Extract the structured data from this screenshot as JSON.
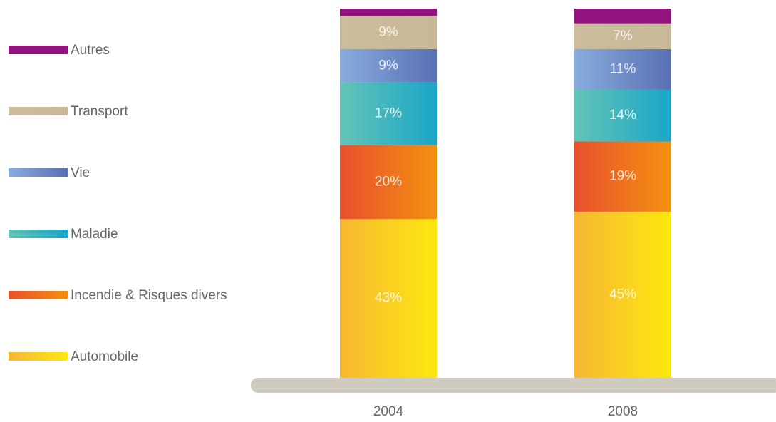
{
  "chart_data": {
    "type": "stacked-bar",
    "categories": [
      "2004",
      "2008"
    ],
    "ylim": [
      0,
      100
    ],
    "series": [
      {
        "name": "Automobile",
        "colors": [
          "#f7b733",
          "#fce80f"
        ],
        "values": [
          43,
          45
        ],
        "value_labels": [
          "43%",
          "45%"
        ]
      },
      {
        "name": "Incendie & Risques divers",
        "colors": [
          "#e8502e",
          "#f39010"
        ],
        "values": [
          20,
          19
        ],
        "value_labels": [
          "20%",
          "19%"
        ]
      },
      {
        "name": "Maladie",
        "colors": [
          "#63c4b6",
          "#1ba6c9"
        ],
        "values": [
          17,
          14
        ],
        "value_labels": [
          "17%",
          "14%"
        ]
      },
      {
        "name": "Vie",
        "colors": [
          "#88acdd",
          "#5a70b4"
        ],
        "values": [
          9,
          11
        ],
        "value_labels": [
          "9%",
          "11%"
        ]
      },
      {
        "name": "Transport",
        "colors": [
          "#cbbd9d",
          "#c7b998"
        ],
        "values": [
          9,
          7
        ],
        "value_labels": [
          "9%",
          "7%"
        ]
      },
      {
        "name": "Autres",
        "colors": [
          "#93137f",
          "#93137f"
        ],
        "values": [
          2,
          4
        ]
      }
    ]
  }
}
